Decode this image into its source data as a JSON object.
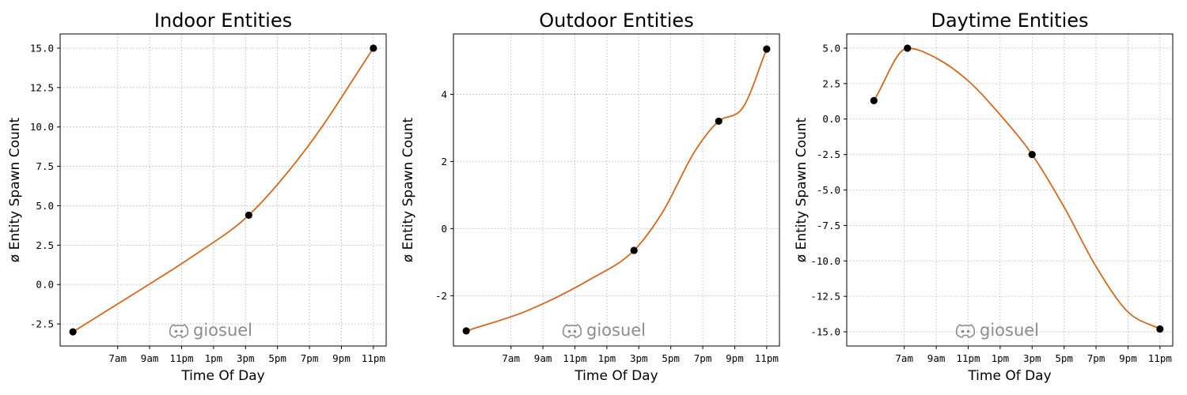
{
  "chart_data": [
    {
      "type": "line",
      "title": "Indoor Entities",
      "xlabel": "Time Of Day",
      "ylabel": "ø Entity Spawn Count",
      "xticks": [
        "7am",
        "9am",
        "11pm",
        "1pm",
        "3pm",
        "5pm",
        "7pm",
        "9pm",
        "11pm"
      ],
      "yticks": [
        "-2.5",
        "0.0",
        "2.5",
        "5.0",
        "7.5",
        "10.0",
        "12.5",
        "15.0"
      ],
      "ylim": [
        -3.9,
        15.9
      ],
      "line_color": "#d2691e",
      "grid": true,
      "points": [
        {
          "x": 4.2,
          "y": -3.0
        },
        {
          "x": 15.2,
          "y": 4.4
        },
        {
          "x": 23.0,
          "y": 15.0
        }
      ],
      "curve": [
        {
          "x": 4.2,
          "y": -3.0
        },
        {
          "x": 8,
          "y": -0.6
        },
        {
          "x": 12,
          "y": 2.0
        },
        {
          "x": 15.2,
          "y": 4.4
        },
        {
          "x": 19,
          "y": 8.9
        },
        {
          "x": 23.0,
          "y": 15.0
        }
      ],
      "watermark": "giosuel"
    },
    {
      "type": "line",
      "title": "Outdoor Entities",
      "xlabel": "Time Of Day",
      "ylabel": "ø Entity Spawn Count",
      "xticks": [
        "7am",
        "9am",
        "11pm",
        "1pm",
        "3pm",
        "5pm",
        "7pm",
        "9pm",
        "11pm"
      ],
      "yticks": [
        "-2",
        "0",
        "2",
        "4"
      ],
      "ylim": [
        -3.5,
        5.8
      ],
      "line_color": "#d2691e",
      "grid": true,
      "points": [
        {
          "x": 4.2,
          "y": -3.05
        },
        {
          "x": 14.7,
          "y": -0.65
        },
        {
          "x": 20.0,
          "y": 3.2
        },
        {
          "x": 23.0,
          "y": 5.35
        }
      ],
      "curve": [
        {
          "x": 4.2,
          "y": -3.05
        },
        {
          "x": 8,
          "y": -2.45
        },
        {
          "x": 12,
          "y": -1.5
        },
        {
          "x": 14.7,
          "y": -0.65
        },
        {
          "x": 16.5,
          "y": 0.5
        },
        {
          "x": 18.5,
          "y": 2.3
        },
        {
          "x": 20.0,
          "y": 3.2
        },
        {
          "x": 21.5,
          "y": 3.6
        },
        {
          "x": 23.0,
          "y": 5.35
        }
      ],
      "watermark": "giosuel"
    },
    {
      "type": "line",
      "title": "Daytime Entities",
      "xlabel": "Time Of Day",
      "ylabel": "ø Entity Spawn Count",
      "xticks": [
        "7am",
        "9am",
        "11pm",
        "1pm",
        "3pm",
        "5pm",
        "7pm",
        "9pm",
        "11pm"
      ],
      "yticks": [
        "5.0",
        "2.5",
        "0.0",
        "-2.5",
        "-5.0",
        "-7.5",
        "-10.0",
        "-12.5",
        "-15.0"
      ],
      "ylim": [
        -16.0,
        6.0
      ],
      "line_color": "#d2691e",
      "grid": true,
      "points": [
        {
          "x": 5.1,
          "y": 1.3
        },
        {
          "x": 7.2,
          "y": 5.0
        },
        {
          "x": 15.0,
          "y": -2.5
        },
        {
          "x": 23.0,
          "y": -14.8
        }
      ],
      "curve": [
        {
          "x": 5.1,
          "y": 1.3
        },
        {
          "x": 7.2,
          "y": 5.0
        },
        {
          "x": 9,
          "y": 4.3
        },
        {
          "x": 11,
          "y": 2.7
        },
        {
          "x": 13,
          "y": 0.3
        },
        {
          "x": 15.0,
          "y": -2.5
        },
        {
          "x": 17,
          "y": -6.2
        },
        {
          "x": 19,
          "y": -10.4
        },
        {
          "x": 21,
          "y": -13.6
        },
        {
          "x": 23.0,
          "y": -14.8
        }
      ],
      "watermark": "giosuel"
    }
  ]
}
